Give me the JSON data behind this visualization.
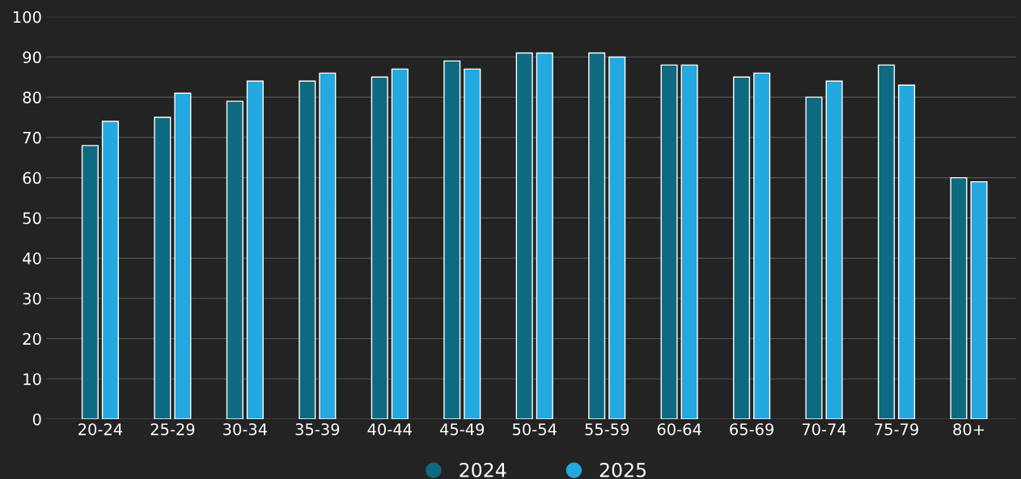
{
  "chart_data": {
    "type": "bar",
    "categories": [
      "20-24",
      "25-29",
      "30-34",
      "35-39",
      "40-44",
      "45-49",
      "50-54",
      "55-59",
      "60-64",
      "65-69",
      "70-74",
      "75-79",
      "80+"
    ],
    "series": [
      {
        "name": "2024",
        "color": "#0e6a80",
        "values": [
          68,
          75,
          79,
          84,
          85,
          89,
          91,
          91,
          88,
          85,
          80,
          88,
          60
        ]
      },
      {
        "name": "2025",
        "color": "#23a8e0",
        "values": [
          74,
          81,
          84,
          86,
          87,
          87,
          91,
          90,
          88,
          86,
          84,
          83,
          59
        ]
      }
    ],
    "ylim": [
      0,
      100
    ],
    "yticks": [
      0,
      10,
      20,
      30,
      40,
      50,
      60,
      70,
      80,
      90,
      100
    ],
    "grid": "y",
    "legend": "bottom"
  }
}
